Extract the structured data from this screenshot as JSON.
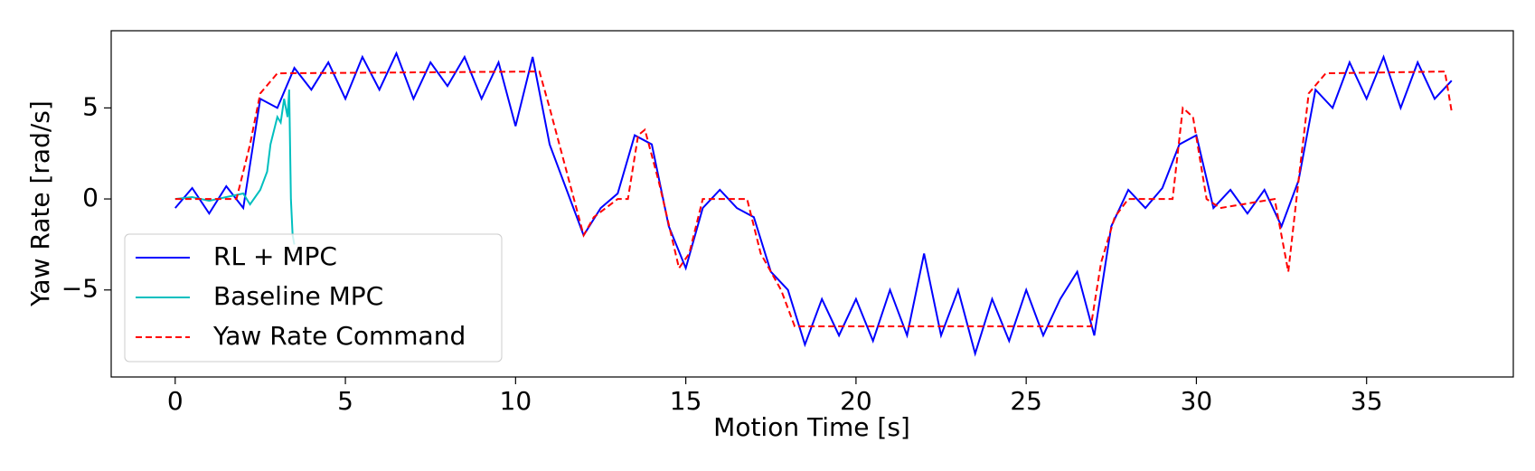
{
  "chart_data": {
    "type": "line",
    "xlabel": "Motion Time [s]",
    "ylabel": "Yaw Rate [rad/s]",
    "xlim": [
      -1.88,
      39.31
    ],
    "ylim": [
      -9.78,
      9.24
    ],
    "xticks": [
      0,
      5,
      10,
      15,
      20,
      25,
      30,
      35
    ],
    "yticks": [
      {
        "value": -5,
        "label": "−5"
      },
      0,
      5
    ],
    "legend": "lower left",
    "series": [
      {
        "name": "RL + MPC",
        "color": "#0000ff",
        "dash": false,
        "x": [
          0,
          0.5,
          1,
          1.5,
          2,
          2.5,
          3,
          3.5,
          4,
          4.5,
          5,
          5.5,
          6,
          6.5,
          7,
          7.5,
          8,
          8.5,
          9,
          9.5,
          10,
          10.5,
          11,
          11.5,
          12,
          12.5,
          13,
          13.5,
          14,
          14.5,
          15,
          15.5,
          16,
          16.5,
          17,
          17.5,
          18,
          18.5,
          19,
          19.5,
          20,
          20.5,
          21,
          21.5,
          22,
          22.5,
          23,
          23.5,
          24,
          24.5,
          25,
          25.5,
          26,
          26.5,
          27,
          27.5,
          28,
          28.5,
          29,
          29.5,
          30,
          30.5,
          31,
          31.5,
          32,
          32.5,
          33,
          33.5,
          34,
          34.5,
          35,
          35.5,
          36,
          36.5,
          37,
          37.5
        ],
        "values": [
          -0.5,
          0.6,
          -0.8,
          0.7,
          -0.5,
          5.5,
          5,
          7.2,
          6,
          7.5,
          5.5,
          7.8,
          6,
          8,
          5.5,
          7.5,
          6.2,
          7.8,
          5.5,
          7.5,
          4,
          7.8,
          3,
          0.5,
          -2,
          -0.5,
          0.3,
          3.5,
          3,
          -1.5,
          -3.8,
          -0.5,
          0.5,
          -0.5,
          -1,
          -4,
          -5,
          -8,
          -5.5,
          -7.5,
          -5.5,
          -7.8,
          -5,
          -7.5,
          -3,
          -7.5,
          -5,
          -8.5,
          -5.5,
          -7.8,
          -5,
          -7.5,
          -5.5,
          -4,
          -7.5,
          -1.5,
          0.5,
          -0.5,
          0.6,
          3,
          3.5,
          -0.5,
          0.5,
          -0.8,
          0.5,
          -1.5,
          1,
          6,
          5,
          7.5,
          5.5,
          7.8,
          5,
          7.5,
          5.5,
          6.5
        ]
      },
      {
        "name": "Baseline MPC",
        "color": "#00bfbf",
        "dash": false,
        "x": [
          0,
          0.5,
          1,
          1.5,
          2,
          2.2,
          2.5,
          2.7,
          2.8,
          3,
          3.1,
          3.2,
          3.3,
          3.35,
          3.4,
          3.45,
          3.5
        ],
        "values": [
          0,
          0.1,
          -0.1,
          0.1,
          0.3,
          -0.3,
          0.5,
          1.5,
          3,
          4.5,
          4.2,
          5.5,
          4.5,
          6,
          0,
          -2,
          -2.5
        ]
      },
      {
        "name": "Yaw Rate Command",
        "color": "#ff0000",
        "dash": true,
        "x": [
          0,
          1.8,
          2.2,
          2.5,
          3,
          10.7,
          11,
          11.5,
          12,
          12.3,
          13,
          13.3,
          13.6,
          13.8,
          14.2,
          14.8,
          15.1,
          15.5,
          16.8,
          17.2,
          17.8,
          18.2,
          26.9,
          27.2,
          27.6,
          28,
          29.3,
          29.6,
          29.9,
          30.3,
          30.7,
          32.3,
          32.7,
          33,
          33.3,
          33.8,
          37.3,
          37.5
        ],
        "values": [
          0,
          0,
          3,
          5.8,
          6.9,
          7,
          5,
          1.5,
          -2,
          -1,
          0,
          0,
          3.5,
          3.8,
          1,
          -3.8,
          -3,
          0,
          0,
          -3,
          -5,
          -7,
          -7,
          -3.5,
          -1,
          0,
          0,
          5,
          4.5,
          0,
          -0.5,
          0,
          -4,
          1,
          5.8,
          6.9,
          7,
          4.8
        ]
      }
    ]
  }
}
